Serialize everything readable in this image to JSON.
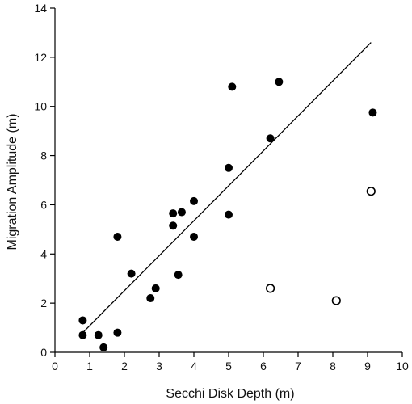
{
  "chart_data": {
    "type": "scatter",
    "title": "",
    "xlabel": "Secchi Disk Depth (m)",
    "ylabel": "Migration Amplitude (m)",
    "xlim": [
      0,
      10
    ],
    "ylim": [
      0,
      14
    ],
    "x_ticks": [
      "0",
      "1",
      "2",
      "3",
      "4",
      "5",
      "6",
      "7",
      "8",
      "9",
      "10"
    ],
    "y_ticks": [
      "0",
      "2",
      "4",
      "6",
      "8",
      "10",
      "12",
      "14"
    ],
    "grid": false,
    "legend": false,
    "series": [
      {
        "marker": "filled-circle",
        "color": "#000000",
        "points": [
          {
            "x": 0.8,
            "y": 1.3
          },
          {
            "x": 0.8,
            "y": 0.7
          },
          {
            "x": 1.25,
            "y": 0.7
          },
          {
            "x": 1.4,
            "y": 0.2
          },
          {
            "x": 1.8,
            "y": 0.8
          },
          {
            "x": 1.8,
            "y": 4.7
          },
          {
            "x": 2.2,
            "y": 3.2
          },
          {
            "x": 2.75,
            "y": 2.2
          },
          {
            "x": 2.9,
            "y": 2.6
          },
          {
            "x": 3.4,
            "y": 5.65
          },
          {
            "x": 3.4,
            "y": 5.15
          },
          {
            "x": 3.55,
            "y": 3.15
          },
          {
            "x": 3.65,
            "y": 5.7
          },
          {
            "x": 4.0,
            "y": 6.15
          },
          {
            "x": 4.0,
            "y": 4.7
          },
          {
            "x": 5.0,
            "y": 7.5
          },
          {
            "x": 5.0,
            "y": 5.6
          },
          {
            "x": 5.1,
            "y": 10.8
          },
          {
            "x": 6.2,
            "y": 8.7
          },
          {
            "x": 6.45,
            "y": 11.0
          },
          {
            "x": 9.15,
            "y": 9.75
          }
        ]
      },
      {
        "marker": "open-circle",
        "color": "#000000",
        "points": [
          {
            "x": 6.2,
            "y": 2.6
          },
          {
            "x": 8.1,
            "y": 2.1
          },
          {
            "x": 9.1,
            "y": 6.55
          }
        ]
      }
    ],
    "trendline": {
      "x": [
        0.8,
        9.1
      ],
      "y": [
        0.8,
        12.6
      ]
    }
  }
}
